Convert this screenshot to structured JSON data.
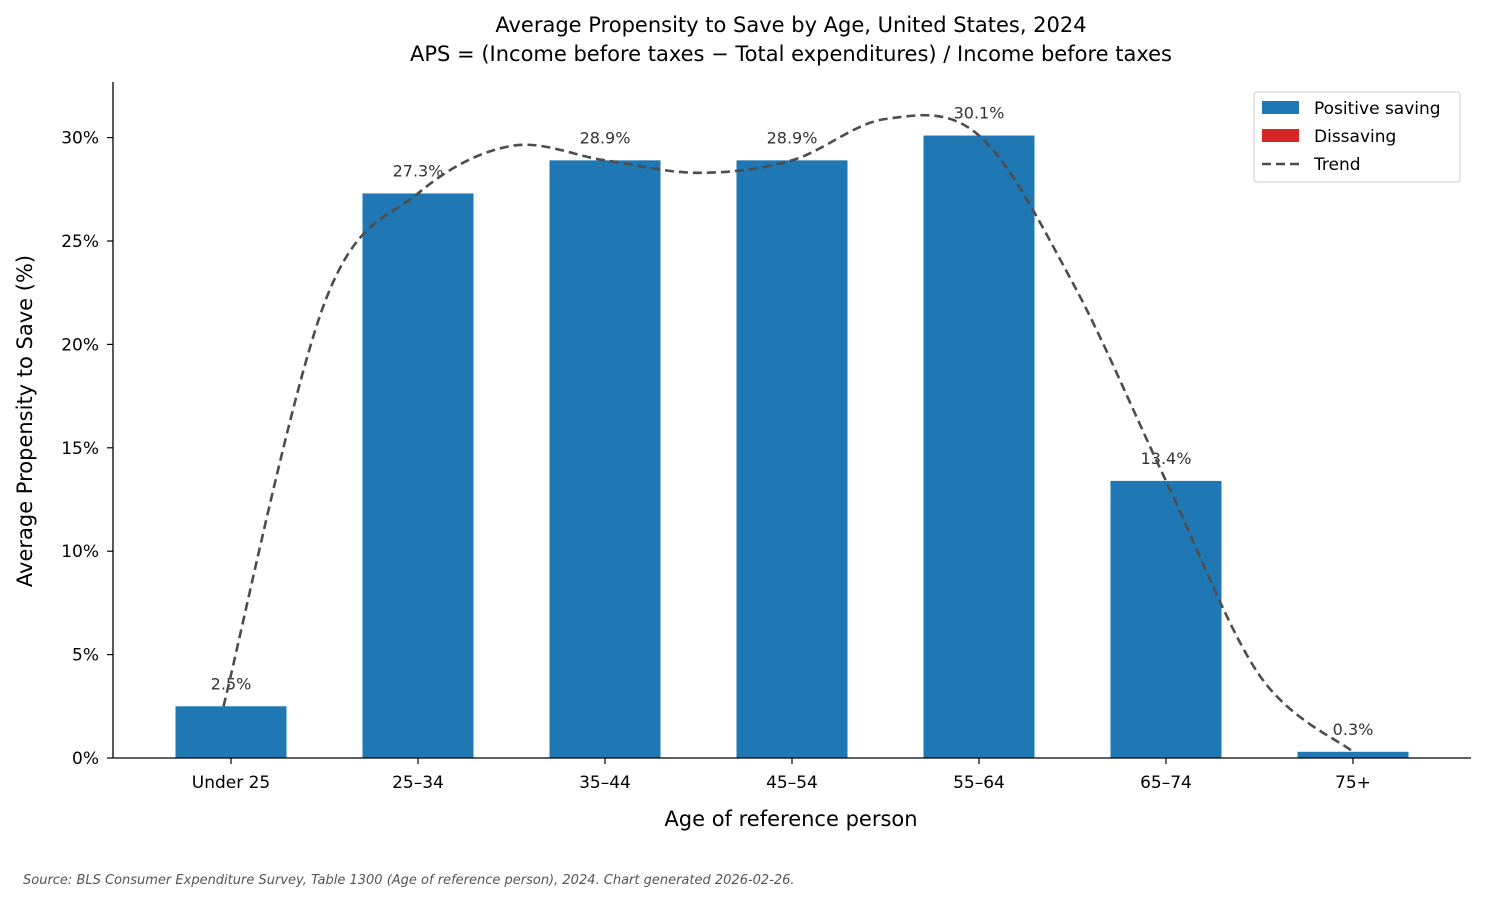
{
  "chart_data": {
    "type": "bar",
    "title": "Average Propensity to Save by Age, United States, 2024",
    "subtitle": "APS = (Income before taxes − Total expenditures) / Income before taxes",
    "xlabel": "Age of reference person",
    "ylabel": "Average Propensity to Save (%)",
    "categories": [
      "Under 25",
      "25–34",
      "35–44",
      "45–54",
      "55–64",
      "65–74",
      "75+"
    ],
    "values": [
      2.5,
      27.3,
      28.9,
      28.9,
      30.1,
      13.4,
      0.3
    ],
    "data_labels": [
      "2.5%",
      "27.3%",
      "28.9%",
      "28.9%",
      "30.1%",
      "13.4%",
      "0.3%"
    ],
    "ylim": [
      0,
      32.6
    ],
    "yticks": [
      0,
      5,
      10,
      15,
      20,
      25,
      30
    ],
    "ytick_labels": [
      "0%",
      "5%",
      "10%",
      "15%",
      "20%",
      "25%",
      "30%"
    ],
    "grid": false,
    "legend": {
      "placement": "top-right",
      "entries": [
        {
          "label": "Positive saving",
          "kind": "patch",
          "color": "#1f77b4"
        },
        {
          "label": "Dissaving",
          "kind": "patch",
          "color": "#d62728"
        },
        {
          "label": "Trend",
          "kind": "dashed-line",
          "color": "#4d4d4d"
        }
      ]
    },
    "trend": {
      "x": [
        -0.04,
        0.5,
        1.0,
        1.5,
        2.0,
        2.5,
        3.0,
        3.5,
        4.0,
        4.5,
        5.0,
        5.5,
        6.0
      ],
      "y": [
        2.5,
        22.0,
        27.3,
        29.6,
        28.9,
        28.3,
        28.9,
        30.9,
        30.1,
        23.0,
        13.4,
        4.0,
        0.3
      ]
    },
    "colors": {
      "positive": "#1f77b4",
      "negative": "#d62728",
      "trend": "#4d4d4d"
    }
  },
  "footer": {
    "source": "Source: BLS Consumer Expenditure Survey, Table 1300 (Age of reference person), 2024.  Chart generated 2026-02-26."
  }
}
